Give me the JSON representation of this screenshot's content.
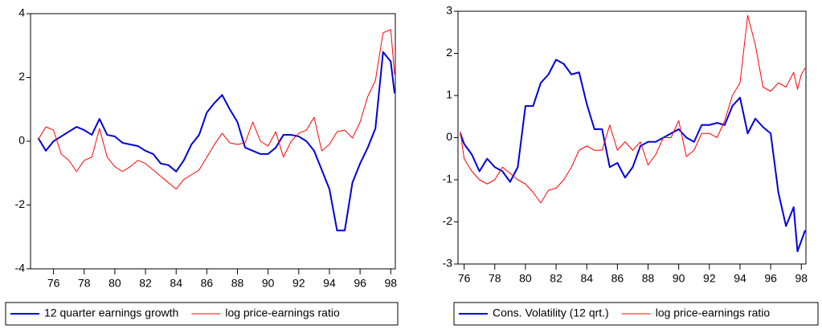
{
  "chart_data": [
    {
      "type": "line",
      "x": [
        75,
        75.5,
        76,
        76.5,
        77,
        77.5,
        78,
        78.5,
        79,
        79.5,
        80,
        80.5,
        81,
        81.5,
        82,
        82.5,
        83,
        83.5,
        84,
        84.5,
        85,
        85.5,
        86,
        86.5,
        87,
        87.5,
        88,
        88.5,
        89,
        89.5,
        90,
        90.5,
        91,
        91.5,
        92,
        92.5,
        93,
        93.5,
        94,
        94.5,
        95,
        95.5,
        96,
        96.5,
        97,
        97.5,
        98,
        98.25
      ],
      "series": [
        {
          "name": "12 quarter earnings growth",
          "color": "#0000dd",
          "values": [
            0.1,
            -0.3,
            0.0,
            0.15,
            0.3,
            0.45,
            0.35,
            0.2,
            0.7,
            0.2,
            0.15,
            -0.05,
            -0.1,
            -0.15,
            -0.3,
            -0.4,
            -0.7,
            -0.75,
            -0.95,
            -0.6,
            -0.1,
            0.2,
            0.9,
            1.2,
            1.45,
            1.0,
            0.6,
            -0.2,
            -0.3,
            -0.4,
            -0.4,
            -0.2,
            0.2,
            0.2,
            0.15,
            0.0,
            -0.3,
            -0.9,
            -1.5,
            -2.8,
            -2.8,
            -1.3,
            -0.7,
            -0.2,
            0.4,
            2.8,
            2.5,
            1.5
          ]
        },
        {
          "name": "log price-earnings ratio",
          "color": "#ff0000",
          "values": [
            0.05,
            0.45,
            0.35,
            -0.4,
            -0.6,
            -0.95,
            -0.6,
            -0.5,
            0.4,
            -0.5,
            -0.8,
            -0.95,
            -0.8,
            -0.6,
            -0.7,
            -0.9,
            -1.1,
            -1.3,
            -1.5,
            -1.2,
            -1.05,
            -0.9,
            -0.5,
            -0.1,
            0.25,
            -0.05,
            -0.1,
            -0.05,
            0.6,
            0.0,
            -0.15,
            0.3,
            -0.5,
            0.0,
            0.25,
            0.35,
            0.75,
            -0.3,
            -0.1,
            0.3,
            0.35,
            0.1,
            0.6,
            1.4,
            1.9,
            3.4,
            3.5,
            2.1
          ]
        }
      ],
      "xlim": [
        74.5,
        98.3
      ],
      "xticks": [
        76,
        78,
        80,
        82,
        84,
        86,
        88,
        90,
        92,
        94,
        96,
        98
      ],
      "ylim": [
        -4,
        4
      ],
      "yticks": [
        -4,
        -2,
        0,
        2,
        4
      ]
    },
    {
      "type": "line",
      "x": [
        75.75,
        76,
        76.5,
        77,
        77.5,
        78,
        78.5,
        79,
        79.5,
        80,
        80.5,
        81,
        81.5,
        82,
        82.5,
        83,
        83.5,
        84,
        84.5,
        85,
        85.5,
        86,
        86.5,
        87,
        87.5,
        88,
        88.5,
        89,
        89.5,
        90,
        90.5,
        91,
        91.5,
        92,
        92.5,
        93,
        93.5,
        94,
        94.5,
        95,
        95.5,
        96,
        96.5,
        97,
        97.5,
        97.75,
        98,
        98.25
      ],
      "series": [
        {
          "name": "Cons. Volatility (12 qrt.)",
          "color": "#0000dd",
          "values": [
            0.1,
            -0.15,
            -0.4,
            -0.8,
            -0.5,
            -0.7,
            -0.8,
            -1.05,
            -0.7,
            0.75,
            0.75,
            1.3,
            1.5,
            1.85,
            1.75,
            1.5,
            1.55,
            0.8,
            0.2,
            0.2,
            -0.7,
            -0.6,
            -0.95,
            -0.7,
            -0.2,
            -0.1,
            -0.1,
            0.0,
            0.1,
            0.2,
            0.0,
            -0.1,
            0.3,
            0.3,
            0.35,
            0.3,
            0.75,
            0.95,
            0.1,
            0.45,
            0.25,
            0.1,
            -1.3,
            -2.1,
            -1.65,
            -2.7,
            -2.45,
            -2.2
          ]
        },
        {
          "name": "log price-earnings ratio",
          "color": "#ff0000",
          "values": [
            0.15,
            -0.5,
            -0.8,
            -1.0,
            -1.1,
            -1.0,
            -0.7,
            -0.85,
            -1.0,
            -1.1,
            -1.3,
            -1.55,
            -1.25,
            -1.2,
            -1.0,
            -0.7,
            -0.3,
            -0.2,
            -0.3,
            -0.3,
            0.3,
            -0.3,
            -0.1,
            -0.3,
            -0.1,
            -0.65,
            -0.4,
            0.0,
            0.0,
            0.4,
            -0.45,
            -0.3,
            0.1,
            0.1,
            0.0,
            0.4,
            1.0,
            1.3,
            2.9,
            2.2,
            1.2,
            1.1,
            1.3,
            1.2,
            1.55,
            1.15,
            1.5,
            1.65
          ]
        }
      ],
      "xlim": [
        75.6,
        98.3
      ],
      "xticks": [
        76,
        78,
        80,
        82,
        84,
        86,
        88,
        90,
        92,
        94,
        96,
        98
      ],
      "ylim": [
        -3,
        3
      ],
      "yticks": [
        -3,
        -2,
        -1,
        0,
        1,
        2,
        3
      ]
    }
  ]
}
